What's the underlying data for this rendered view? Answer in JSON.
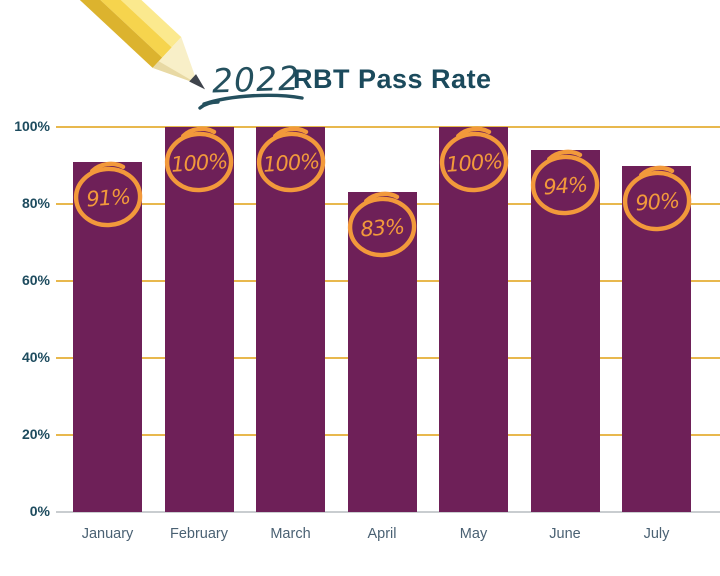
{
  "title": {
    "year": "2022",
    "text": "RBT Pass Rate"
  },
  "icons": {
    "pencil": "pencil-icon",
    "underline": "handwritten-underline",
    "badge": "hand-drawn-circle"
  },
  "chart_data": {
    "type": "bar",
    "title": "2022 RBT Pass Rate",
    "categories": [
      "January",
      "February",
      "March",
      "April",
      "May",
      "June",
      "July"
    ],
    "values": [
      91,
      100,
      100,
      83,
      100,
      94,
      90
    ],
    "bar_labels": [
      "91%",
      "100%",
      "100%",
      "83%",
      "100%",
      "94%",
      "90%"
    ],
    "xlabel": "",
    "ylabel": "",
    "ylim": [
      0,
      100
    ],
    "yticks": [
      0,
      20,
      40,
      60,
      80,
      100
    ],
    "ytick_labels": [
      "0%",
      "20%",
      "40%",
      "60%",
      "80%",
      "100%"
    ],
    "grid": true,
    "legend": false
  },
  "colors": {
    "bar": "#6e2058",
    "gridline": "#e8b84d",
    "baseline": "#c9cdd0",
    "badge": "#f2993b",
    "ytick_label": "#1d4b5e",
    "xtick_label": "#4a6173",
    "title_text": "#1b4a5c",
    "year_text": "#24505e",
    "pencil_body": "#f6d44d",
    "pencil_body_light": "#fbe98e",
    "pencil_body_dark": "#dcb32e",
    "pencil_wood": "#f8efc8",
    "pencil_wood_shade": "#e8d9a4",
    "pencil_tip": "#3f444c"
  }
}
